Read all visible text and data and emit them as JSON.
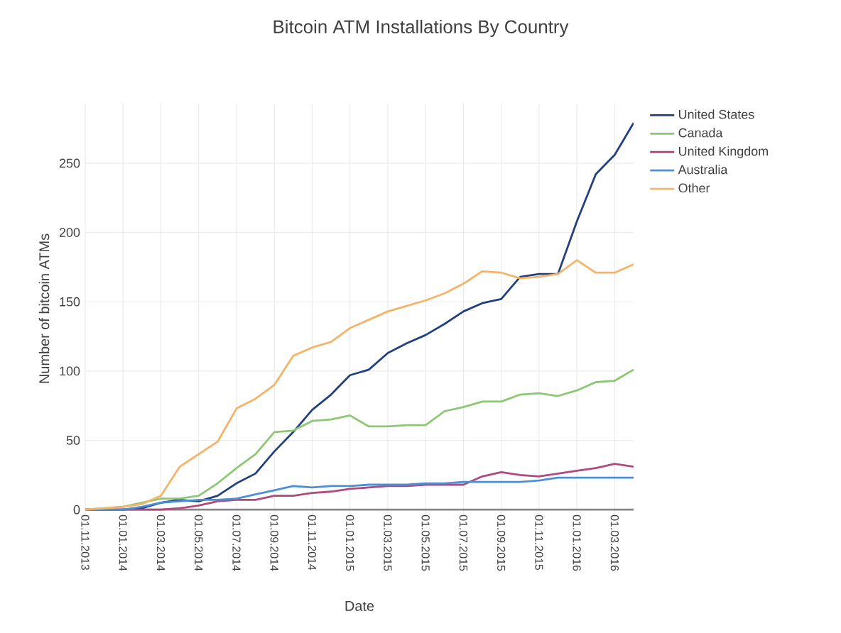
{
  "chart_data": {
    "type": "line",
    "title": "Bitcoin ATM Installations By Country",
    "xlabel": "Date",
    "ylabel": "Number of bitcoin ATMs",
    "x": [
      "2013-11",
      "2013-12",
      "2014-01",
      "2014-02",
      "2014-03",
      "2014-04",
      "2014-05",
      "2014-06",
      "2014-07",
      "2014-08",
      "2014-09",
      "2014-10",
      "2014-11",
      "2014-12",
      "2015-01",
      "2015-02",
      "2015-03",
      "2015-04",
      "2015-05",
      "2015-06",
      "2015-07",
      "2015-08",
      "2015-09",
      "2015-10",
      "2015-11",
      "2015-12",
      "2016-01",
      "2016-02",
      "2016-03",
      "2016-04"
    ],
    "series": [
      {
        "name": "United States",
        "color": "#23407f",
        "values": [
          0,
          0,
          0,
          1,
          5,
          7,
          6,
          10,
          19,
          26,
          42,
          56,
          72,
          83,
          97,
          101,
          113,
          120,
          126,
          134,
          143,
          149,
          152,
          168,
          170,
          170,
          208,
          242,
          256,
          279
        ]
      },
      {
        "name": "Canada",
        "color": "#8cc873",
        "values": [
          0,
          1,
          2,
          5,
          8,
          8,
          10,
          19,
          30,
          40,
          56,
          57,
          64,
          65,
          68,
          60,
          60,
          61,
          61,
          71,
          74,
          78,
          78,
          83,
          84,
          82,
          86,
          92,
          93,
          101
        ]
      },
      {
        "name": "United Kingdom",
        "color": "#b04a7c",
        "values": [
          0,
          0,
          0,
          0,
          0,
          1,
          3,
          6,
          7,
          7,
          10,
          10,
          12,
          13,
          15,
          16,
          17,
          17,
          18,
          18,
          18,
          24,
          27,
          25,
          24,
          26,
          28,
          30,
          33,
          31
        ]
      },
      {
        "name": "Australia",
        "color": "#4b8fd6",
        "values": [
          0,
          0,
          0,
          2,
          5,
          6,
          7,
          7,
          8,
          11,
          14,
          17,
          16,
          17,
          17,
          18,
          18,
          18,
          19,
          19,
          20,
          20,
          20,
          20,
          21,
          23,
          23,
          23,
          23,
          23
        ]
      },
      {
        "name": "Other",
        "color": "#f6b46a",
        "values": [
          0,
          1,
          2,
          4,
          10,
          31,
          40,
          49,
          73,
          80,
          90,
          111,
          117,
          121,
          131,
          137,
          143,
          147,
          151,
          156,
          163,
          172,
          171,
          167,
          168,
          170,
          180,
          171,
          171,
          177
        ]
      }
    ],
    "xlim": [
      "2013-11",
      "2016-04"
    ],
    "xticks": [
      {
        "value": "2013-11",
        "label": "01.11.2013"
      },
      {
        "value": "2014-01",
        "label": "01.01.2014"
      },
      {
        "value": "2014-03",
        "label": "01.03.2014"
      },
      {
        "value": "2014-05",
        "label": "01.05.2014"
      },
      {
        "value": "2014-07",
        "label": "01.07.2014"
      },
      {
        "value": "2014-09",
        "label": "01.09.2014"
      },
      {
        "value": "2014-11",
        "label": "01.11.2014"
      },
      {
        "value": "2015-01",
        "label": "01.01.2015"
      },
      {
        "value": "2015-03",
        "label": "01.03.2015"
      },
      {
        "value": "2015-05",
        "label": "01.05.2015"
      },
      {
        "value": "2015-07",
        "label": "01.07.2015"
      },
      {
        "value": "2015-09",
        "label": "01.09.2015"
      },
      {
        "value": "2015-11",
        "label": "01.11.2015"
      },
      {
        "value": "2016-01",
        "label": "01.01.2016"
      },
      {
        "value": "2016-03",
        "label": "01.03.2016"
      }
    ],
    "ylim": [
      -3,
      293
    ],
    "yticks": [
      0,
      50,
      100,
      150,
      200,
      250
    ],
    "grid": true,
    "legend": "top right"
  }
}
